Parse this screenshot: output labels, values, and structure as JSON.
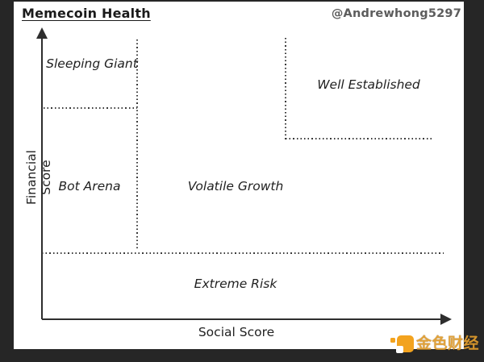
{
  "header": {
    "title": "Memecoin Health",
    "handle": "@Andrewhong5297"
  },
  "axes": {
    "x_label": "Social Score",
    "y_label": "Financial Score",
    "axis_color": "#2e2e2e",
    "boundary_style": "dotted"
  },
  "regions": [
    {
      "label": "Sleeping Giant",
      "position": "top-left, high financial / low social"
    },
    {
      "label": "Well Established",
      "position": "top-right, high financial / high social"
    },
    {
      "label": "Bot Arena",
      "position": "mid-left, mid financial / low social"
    },
    {
      "label": "Volatile Growth",
      "position": "center, mid financial / mid social"
    },
    {
      "label": "Extreme Risk",
      "position": "bottom, low financial score"
    }
  ],
  "watermark": {
    "text": "金色财经",
    "logo_color": "#f3a31e"
  },
  "colors": {
    "frame": "#262626",
    "background": "#ffffff",
    "dotted_line": "#3a3a3a",
    "text": "#1f1f1f",
    "handle": "#5c5c5c"
  }
}
